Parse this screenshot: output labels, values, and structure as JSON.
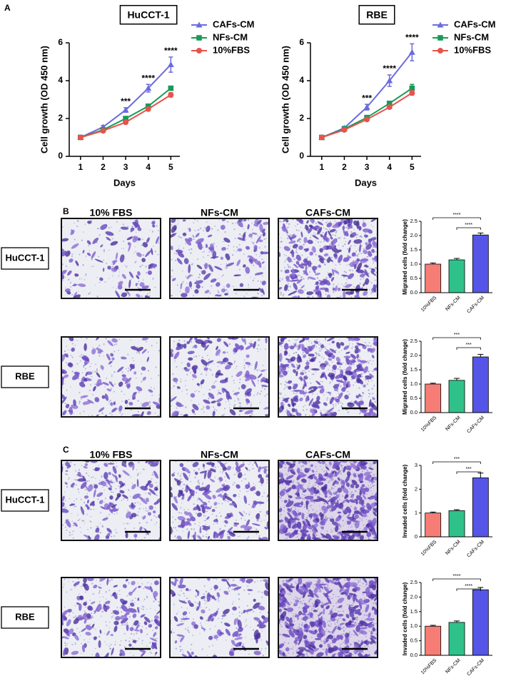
{
  "panel_labels": [
    "A",
    "B",
    "C"
  ],
  "image_panels": [
    {
      "columns": [
        "10% FBS",
        "NFs-CM",
        "CAFs-CM"
      ],
      "rows": [
        "HuCCT-1",
        "RBE"
      ]
    },
    {
      "columns": [
        "10% FBS",
        "NFs-CM",
        "CAFs-CM"
      ],
      "rows": [
        "HuCCT-1",
        "RBE"
      ]
    }
  ],
  "chart_data": [
    {
      "type": "line",
      "title": "HuCCT-1",
      "x_label": "Days",
      "y_label": "Cell growth (OD 450 nm)",
      "x": [
        1,
        2,
        3,
        4,
        5
      ],
      "xlim": [
        0.5,
        5.4
      ],
      "xticks": [
        1,
        2,
        3,
        4,
        5
      ],
      "ylim": [
        0,
        6
      ],
      "yticks": [
        0,
        2,
        4,
        6
      ],
      "series": [
        {
          "name": "CAFs-CM",
          "color": "#6b6bde",
          "marker": "triangle",
          "values": [
            1.0,
            1.55,
            2.45,
            3.6,
            4.85
          ],
          "errors": [
            0.05,
            0.08,
            0.12,
            0.2,
            0.4
          ]
        },
        {
          "name": "NFs-CM",
          "color": "#1a9a5a",
          "marker": "square",
          "values": [
            1.0,
            1.4,
            2.0,
            2.65,
            3.6
          ],
          "errors": [
            0.04,
            0.05,
            0.06,
            0.08,
            0.1
          ]
        },
        {
          "name": "10%FBS",
          "color": "#e8534d",
          "marker": "circle",
          "values": [
            1.0,
            1.35,
            1.8,
            2.5,
            3.25
          ],
          "errors": [
            0.04,
            0.05,
            0.06,
            0.08,
            0.12
          ]
        }
      ],
      "annotations": [
        {
          "x": 3,
          "text": "***"
        },
        {
          "x": 4,
          "text": "****"
        },
        {
          "x": 5,
          "text": "****"
        }
      ]
    },
    {
      "type": "line",
      "title": "RBE",
      "x_label": "Days",
      "y_label": "Cell growth (OD 450 nm)",
      "x": [
        1,
        2,
        3,
        4,
        5
      ],
      "xlim": [
        0.5,
        5.4
      ],
      "xticks": [
        1,
        2,
        3,
        4,
        5
      ],
      "ylim": [
        0,
        6
      ],
      "yticks": [
        0,
        2,
        4,
        6
      ],
      "series": [
        {
          "name": "CAFs-CM",
          "color": "#6b6bde",
          "marker": "triangle",
          "values": [
            1.0,
            1.5,
            2.6,
            4.0,
            5.5
          ],
          "errors": [
            0.05,
            0.08,
            0.15,
            0.3,
            0.45
          ]
        },
        {
          "name": "NFs-CM",
          "color": "#1a9a5a",
          "marker": "square",
          "values": [
            1.0,
            1.45,
            2.05,
            2.8,
            3.6
          ],
          "errors": [
            0.04,
            0.05,
            0.08,
            0.1,
            0.2
          ]
        },
        {
          "name": "10%FBS",
          "color": "#e8534d",
          "marker": "circle",
          "values": [
            1.0,
            1.4,
            1.95,
            2.6,
            3.35
          ],
          "errors": [
            0.04,
            0.05,
            0.06,
            0.08,
            0.12
          ]
        }
      ],
      "annotations": [
        {
          "x": 3,
          "text": "***"
        },
        {
          "x": 4,
          "text": "****"
        },
        {
          "x": 5,
          "text": "****"
        }
      ]
    },
    {
      "type": "bar",
      "y_label": "Migrated cells (fold change)",
      "categories": [
        "10%FBS",
        "NFs-CM",
        "CAFs-CM"
      ],
      "colors": [
        "#f67d76",
        "#2ec28a",
        "#5555e8"
      ],
      "values": [
        1.0,
        1.15,
        2.02
      ],
      "errors": [
        0.04,
        0.05,
        0.07
      ],
      "ylim": [
        0,
        2.5
      ],
      "yticks": [
        {
          "value": 0,
          "label": "0.0"
        },
        0.5,
        {
          "value": 1,
          "label": "1.0"
        },
        1.5,
        {
          "value": 2,
          "label": "2.0"
        },
        2.5
      ],
      "comparisons": [
        {
          "from": "10%FBS",
          "to": "CAFs-CM",
          "label": "****"
        },
        {
          "from": "NFs-CM",
          "to": "CAFs-CM",
          "label": "****"
        }
      ]
    },
    {
      "type": "bar",
      "y_label": "Migrated cells (fold change)",
      "categories": [
        "10%FBS",
        "NFs-CM",
        "CAFs-CM"
      ],
      "colors": [
        "#f67d76",
        "#2ec28a",
        "#5555e8"
      ],
      "values": [
        1.0,
        1.13,
        1.95
      ],
      "errors": [
        0.03,
        0.07,
        0.09
      ],
      "ylim": [
        0,
        2.5
      ],
      "yticks": [
        {
          "value": 0,
          "label": "0.0"
        },
        0.5,
        {
          "value": 1,
          "label": "1.0"
        },
        1.5,
        {
          "value": 2,
          "label": "2.0"
        },
        2.5
      ],
      "comparisons": [
        {
          "from": "10%FBS",
          "to": "CAFs-CM",
          "label": "***"
        },
        {
          "from": "NFs-CM",
          "to": "CAFs-CM",
          "label": "***"
        }
      ]
    },
    {
      "type": "bar",
      "y_label": "Invaded cells (fold change)",
      "categories": [
        "10%FBS",
        "NFs-CM",
        "CAFs-CM"
      ],
      "colors": [
        "#f67d76",
        "#2ec28a",
        "#5555e8"
      ],
      "values": [
        1.0,
        1.1,
        2.48
      ],
      "errors": [
        0.04,
        0.04,
        0.2
      ],
      "ylim": [
        0,
        3
      ],
      "yticks": [
        0,
        1,
        2,
        3
      ],
      "comparisons": [
        {
          "from": "10%FBS",
          "to": "CAFs-CM",
          "label": "***"
        },
        {
          "from": "NFs-CM",
          "to": "CAFs-CM",
          "label": "***"
        }
      ]
    },
    {
      "type": "bar",
      "y_label": "Invaded cells (fold change)",
      "categories": [
        "10%FBS",
        "NFs-CM",
        "CAFs-CM"
      ],
      "colors": [
        "#f67d76",
        "#2ec28a",
        "#5555e8"
      ],
      "values": [
        1.0,
        1.13,
        2.25
      ],
      "errors": [
        0.03,
        0.05,
        0.08
      ],
      "ylim": [
        0,
        2.5
      ],
      "yticks": [
        {
          "value": 0,
          "label": "0.0"
        },
        0.5,
        {
          "value": 1,
          "label": "1.0"
        },
        1.5,
        {
          "value": 2,
          "label": "2.0"
        },
        2.5
      ],
      "comparisons": [
        {
          "from": "10%FBS",
          "to": "CAFs-CM",
          "label": "****"
        },
        {
          "from": "NFs-CM",
          "to": "CAFs-CM",
          "label": "****"
        }
      ]
    }
  ]
}
